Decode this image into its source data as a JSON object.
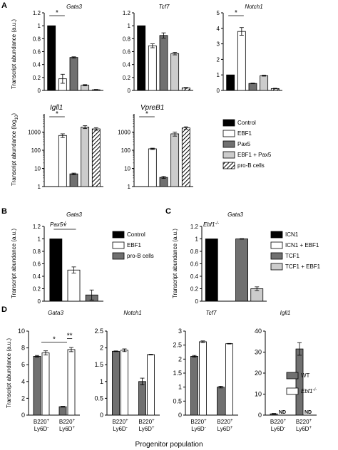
{
  "colors": {
    "black": "#000000",
    "white": "#ffffff",
    "dark_gray": "#707070",
    "light_gray": "#cccccc",
    "stroke": "#000000"
  },
  "panel_letters": {
    "a": "A",
    "b": "B",
    "c": "C",
    "d": "D"
  },
  "chart_data": [
    {
      "id": "A-gata3",
      "type": "bar",
      "title": "Gata3",
      "ylabel": "Transcript abundance (a.u.)",
      "ylim": [
        0,
        1.2
      ],
      "yticks": [
        "0",
        "0.2",
        "0.4",
        "0.6",
        "0.8",
        "1",
        "1.2"
      ],
      "categories": [
        "Control",
        "EBF1",
        "Pax5",
        "EBF1 + Pax5",
        "pro-B cells"
      ],
      "values": [
        1.0,
        0.18,
        0.51,
        0.08,
        0.01
      ],
      "errors": [
        0,
        0.07,
        0.01,
        0.01,
        0.005
      ],
      "significance": [
        {
          "from": 0,
          "to": 1,
          "label": "*"
        }
      ]
    },
    {
      "id": "A-tcf7",
      "type": "bar",
      "title": "Tcf7",
      "ylabel": "",
      "ylim": [
        0,
        1.2
      ],
      "yticks": [
        "0",
        "0.2",
        "0.4",
        "0.6",
        "0.8",
        "1",
        "1.2"
      ],
      "categories": [
        "Control",
        "EBF1",
        "Pax5",
        "EBF1 + Pax5",
        "pro-B cells"
      ],
      "values": [
        1.0,
        0.69,
        0.85,
        0.57,
        0.04
      ],
      "errors": [
        0,
        0.03,
        0.04,
        0.02,
        0.005
      ],
      "significance": []
    },
    {
      "id": "A-notch1",
      "type": "bar",
      "title": "Notch1",
      "ylabel": "",
      "ylim": [
        0,
        5
      ],
      "yticks": [
        "0",
        "1",
        "2",
        "3",
        "4",
        "5"
      ],
      "categories": [
        "Control",
        "EBF1",
        "Pax5",
        "EBF1 + Pax5",
        "pro-B cells"
      ],
      "values": [
        1.0,
        3.8,
        0.45,
        0.95,
        0.12
      ],
      "errors": [
        0,
        0.25,
        0.02,
        0.03,
        0.02
      ],
      "significance": [
        {
          "from": 0,
          "to": 1,
          "label": "*"
        }
      ]
    },
    {
      "id": "A-igll1",
      "type": "bar",
      "scale": "log",
      "title": "Igll1",
      "ylabel": "Transcript abundance (log10)",
      "ylim": [
        1,
        10000
      ],
      "yticks": [
        "1",
        "10",
        "100",
        "1000"
      ],
      "categories": [
        "Control",
        "EBF1",
        "Pax5",
        "EBF1 + Pax5",
        "pro-B cells"
      ],
      "values": [
        1,
        650,
        5,
        1900,
        1500
      ],
      "errors": [
        0,
        150,
        0.5,
        350,
        250
      ],
      "significance": [
        {
          "from": 0,
          "to": 1,
          "label": "*"
        }
      ]
    },
    {
      "id": "A-vpreb1",
      "type": "bar",
      "scale": "log",
      "title": "VpreB1",
      "ylabel": "",
      "ylim": [
        1,
        10000
      ],
      "yticks": [
        "1",
        "10",
        "100",
        "1000"
      ],
      "categories": [
        "Control",
        "EBF1",
        "Pax5",
        "EBF1 + Pax5",
        "pro-B cells"
      ],
      "values": [
        1,
        120,
        3.2,
        800,
        1700
      ],
      "errors": [
        0,
        10,
        0.4,
        200,
        250
      ],
      "significance": [
        {
          "from": 0,
          "to": 1,
          "label": "*"
        }
      ]
    },
    {
      "id": "B-gata3",
      "type": "bar",
      "title": "Gata3",
      "subtitle": "Pax5",
      "subtitle_sup": "-/-",
      "ylabel": "Transcript abundance (a.u.)",
      "ylim": [
        0,
        1.2
      ],
      "yticks": [
        "0",
        "0.2",
        "0.4",
        "0.6",
        "0.8",
        "1",
        "1.2"
      ],
      "categories": [
        "Control",
        "EBF1",
        "pro-B cells"
      ],
      "values": [
        1.0,
        0.5,
        0.1
      ],
      "errors": [
        0,
        0.05,
        0.08
      ],
      "significance": [
        {
          "from": 0,
          "to": 1,
          "label": "*"
        }
      ]
    },
    {
      "id": "C-gata3",
      "type": "bar",
      "title": "Gata3",
      "subtitle": "Ebf1",
      "subtitle_sup": "-/-",
      "ylabel": "Transcript abundance (a.u.)",
      "ylim": [
        0,
        1.2
      ],
      "yticks": [
        "0",
        "0.2",
        "0.4",
        "0.6",
        "0.8",
        "1",
        "1.2"
      ],
      "categories": [
        "ICN1",
        "ICN1 + EBF1",
        "TCF1",
        "TCF1 + EBF1"
      ],
      "values": [
        1.0,
        0.0,
        1.0,
        0.2
      ],
      "errors": [
        0,
        0,
        0.005,
        0.03
      ],
      "significance": []
    },
    {
      "id": "D-gata3",
      "type": "bar",
      "title": "Gata3",
      "ylabel": "Transcript abundance (a.u.)",
      "ylim": [
        0,
        10
      ],
      "yticks": [
        "0",
        "2",
        "4",
        "6",
        "8",
        "10"
      ],
      "categories": [
        "B220+ Ly6D-",
        "B220+ Ly6D+"
      ],
      "series": [
        {
          "name": "WT",
          "values": [
            7.0,
            1.0
          ],
          "errors": [
            0.1,
            0.05
          ]
        },
        {
          "name": "Ebf1-/-",
          "values": [
            7.4,
            7.8
          ],
          "errors": [
            0.25,
            0.25
          ]
        }
      ],
      "significance": [
        {
          "from": 0.5,
          "to": 1.5,
          "y": 8.7,
          "label": "*"
        },
        {
          "from": 1.5,
          "to": 1.7,
          "y": 9.1,
          "label": "**"
        }
      ]
    },
    {
      "id": "D-notch1",
      "type": "bar",
      "title": "Notch1",
      "ylabel": "",
      "ylim": [
        0,
        2.5
      ],
      "yticks": [
        "0",
        "0.5",
        "1",
        "1.5",
        "2",
        "2.5"
      ],
      "categories": [
        "B220+ Ly6D-",
        "B220+ Ly6D+"
      ],
      "series": [
        {
          "name": "WT",
          "values": [
            1.9,
            1.0
          ],
          "errors": [
            0.01,
            0.1
          ]
        },
        {
          "name": "Ebf1-/-",
          "values": [
            1.93,
            1.8
          ],
          "errors": [
            0.04,
            0.01
          ]
        }
      ],
      "significance": []
    },
    {
      "id": "D-tcf7",
      "type": "bar",
      "title": "Tcf7",
      "ylabel": "",
      "ylim": [
        0,
        3
      ],
      "yticks": [
        "0",
        "0.5",
        "1",
        "1.5",
        "2",
        "2.5",
        "3"
      ],
      "categories": [
        "B220+ Ly6D-",
        "B220+ Ly6D+"
      ],
      "series": [
        {
          "name": "WT",
          "values": [
            2.1,
            1.0
          ],
          "errors": [
            0.03,
            0.03
          ]
        },
        {
          "name": "Ebf1-/-",
          "values": [
            2.62,
            2.55
          ],
          "errors": [
            0.03,
            0.01
          ]
        }
      ],
      "significance": []
    },
    {
      "id": "D-igll1",
      "type": "bar",
      "title": "Igll1",
      "ylabel": "",
      "ylim": [
        0,
        40
      ],
      "yticks": [
        "0",
        "10",
        "20",
        "30",
        "40"
      ],
      "categories": [
        "B220+ Ly6D-",
        "B220+ Ly6D+"
      ],
      "series": [
        {
          "name": "WT",
          "values": [
            0.6,
            31.5
          ],
          "errors": [
            0.2,
            3
          ]
        },
        {
          "name": "Ebf1-/-",
          "values": [
            0,
            0
          ],
          "errors": [
            0,
            0
          ]
        }
      ],
      "nd_labels": [
        "ND",
        "ND"
      ],
      "significance": []
    }
  ],
  "legends": {
    "a": [
      "Control",
      "EBF1",
      "Pax5",
      "EBF1 + Pax5",
      "pro-B cells"
    ],
    "b": [
      "Control",
      "EBF1",
      "pro-B cells"
    ],
    "c": [
      "ICN1",
      "ICN1 + EBF1",
      "TCF1",
      "TCF1 + EBF1"
    ],
    "d": [
      "WT",
      "Ebf1-/-"
    ]
  },
  "d_category_labels": [
    {
      "line1": "B220+",
      "line2": "Ly6D-"
    },
    {
      "line1": "B220+",
      "line2": "Ly6D+"
    }
  ],
  "d_xlabel": "Progenitor population"
}
